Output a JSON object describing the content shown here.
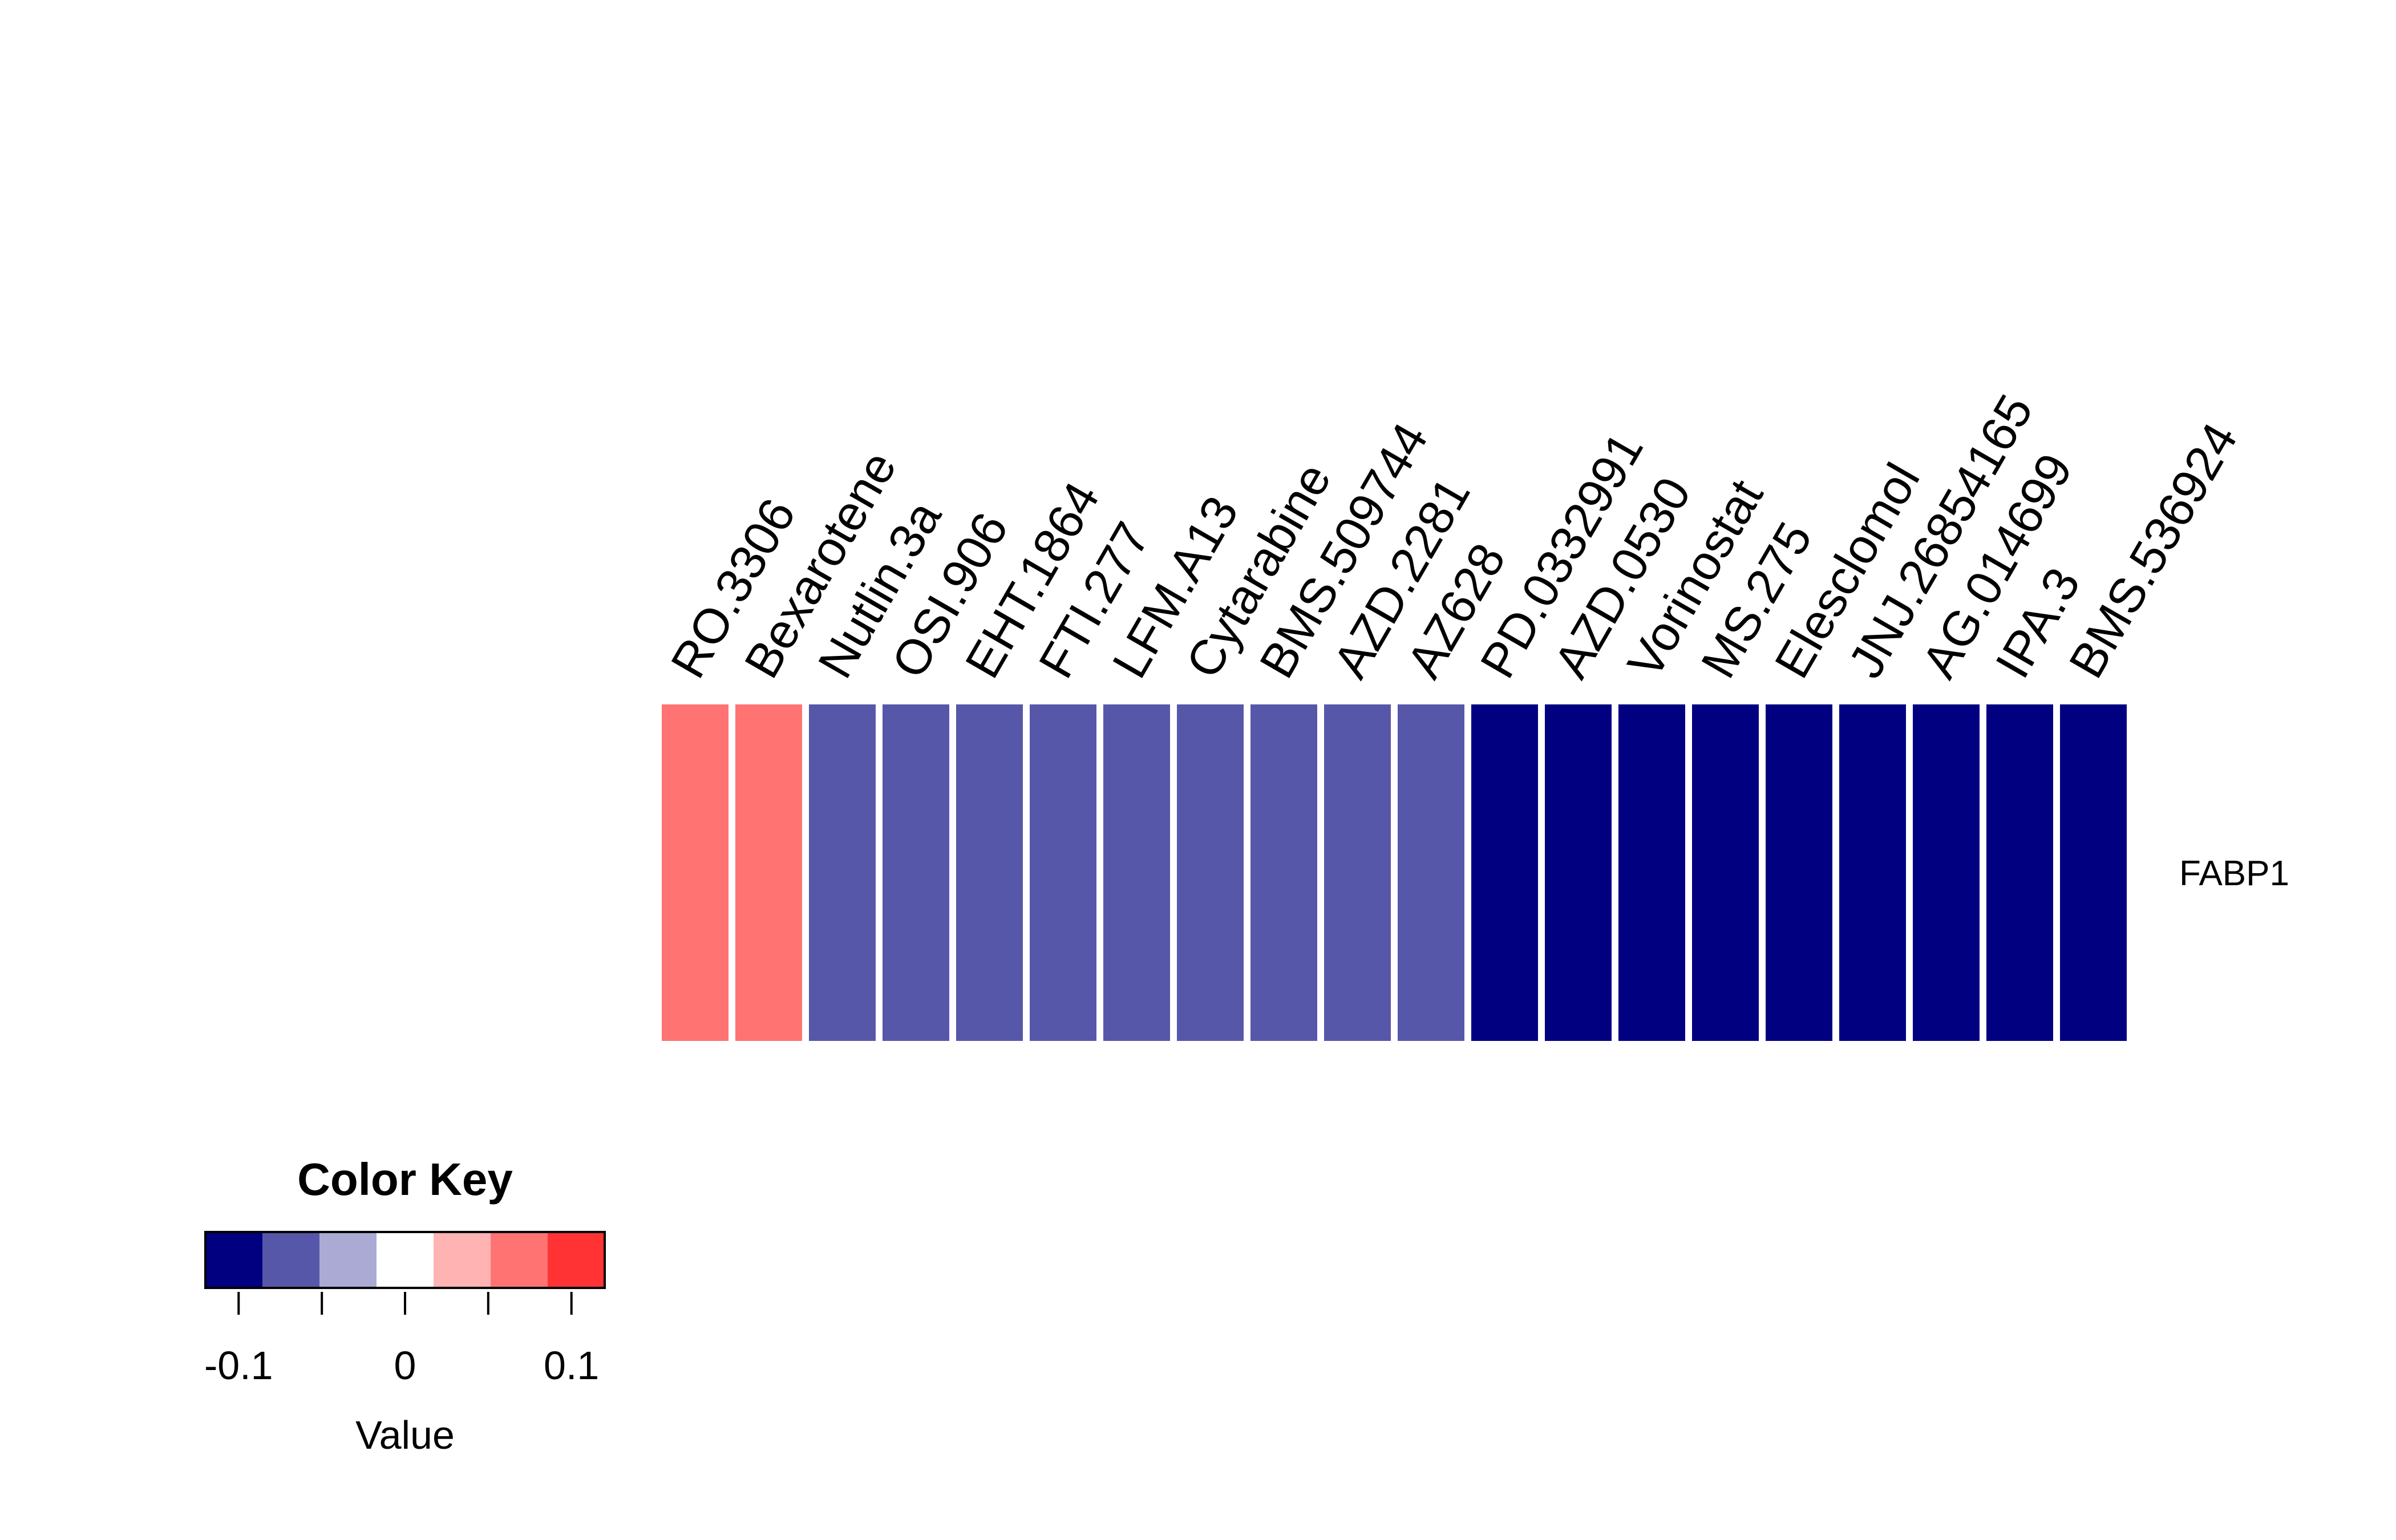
{
  "chart_data": {
    "type": "heatmap",
    "rows": [
      "FABP1"
    ],
    "columns": [
      "RO.3306",
      "Bexarotene",
      "Nutlin.3a",
      "OSI.906",
      "EHT.1864",
      "FTI.277",
      "LFM.A13",
      "Cytarabine",
      "BMS.509744",
      "AZD.2281",
      "AZ628",
      "PD.0332991",
      "AZD.0530",
      "Vorinostat",
      "MS.275",
      "Elesclomol",
      "JNJ.26854165",
      "AG.014699",
      "IPA.3",
      "BMS.536924"
    ],
    "values": [
      [
        0.07,
        0.07,
        -0.07,
        -0.07,
        -0.07,
        -0.07,
        -0.07,
        -0.07,
        -0.07,
        -0.07,
        -0.07,
        -0.12,
        -0.12,
        -0.12,
        -0.12,
        -0.12,
        -0.12,
        -0.12,
        -0.12,
        -0.12
      ]
    ],
    "color_key": {
      "title": "Color Key",
      "xlabel": "Value",
      "range": [
        -0.12,
        0.12
      ],
      "breaks": [
        -0.12,
        -0.085714,
        -0.051429,
        -0.017143,
        0.017143,
        0.051429,
        0.085714,
        0.12
      ],
      "colors": [
        "#000080",
        "#5757AA",
        "#AAAAD4",
        "#FFFFFF",
        "#FFB3B3",
        "#FF7373",
        "#FF3333"
      ],
      "ticks": [
        -0.1,
        -0.05,
        0,
        0.05,
        0.1
      ],
      "tick_labels": [
        "-0.1",
        "",
        "0",
        "",
        "0.1"
      ]
    }
  }
}
